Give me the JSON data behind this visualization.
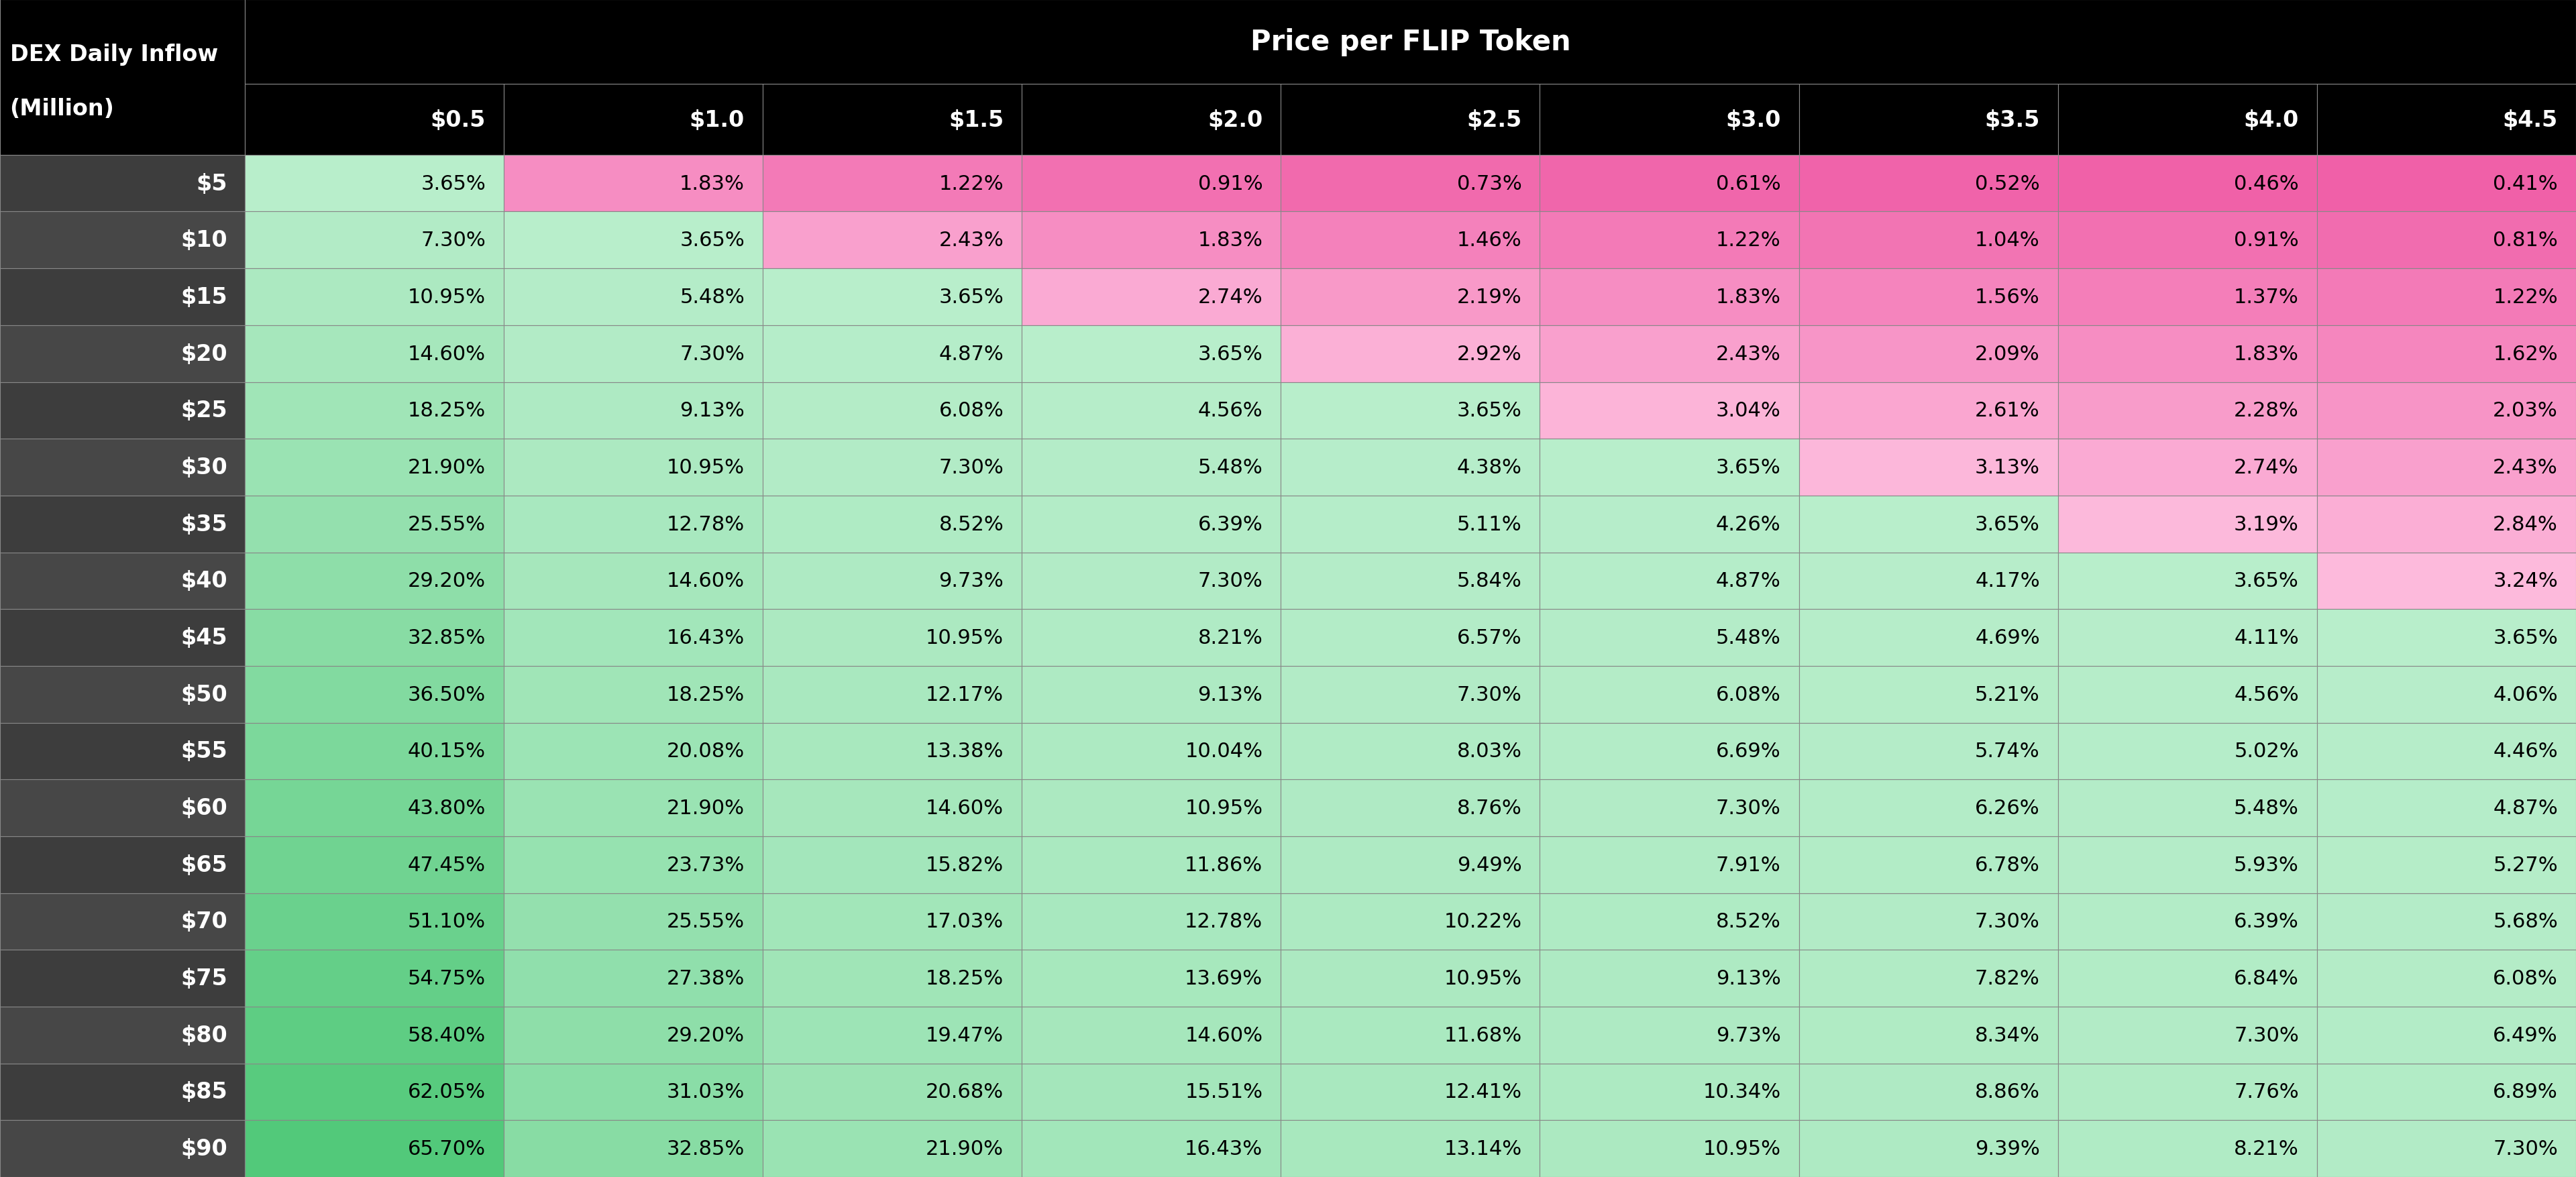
{
  "title": "Price per FLIP Token",
  "row_label_header_line1": "DEX Daily Inflow",
  "row_label_header_line2": "(Million)",
  "col_headers": [
    "$0.5",
    "$1.0",
    "$1.5",
    "$2.0",
    "$2.5",
    "$3.0",
    "$3.5",
    "$4.0",
    "$4.5"
  ],
  "row_headers": [
    "$5",
    "$10",
    "$15",
    "$20",
    "$25",
    "$30",
    "$35",
    "$40",
    "$45",
    "$50",
    "$55",
    "$60",
    "$65",
    "$70",
    "$75",
    "$80",
    "$85",
    "$90"
  ],
  "values": [
    [
      3.65,
      1.83,
      1.22,
      0.91,
      0.73,
      0.61,
      0.52,
      0.46,
      0.41
    ],
    [
      7.3,
      3.65,
      2.43,
      1.83,
      1.46,
      1.22,
      1.04,
      0.91,
      0.81
    ],
    [
      10.95,
      5.48,
      3.65,
      2.74,
      2.19,
      1.83,
      1.56,
      1.37,
      1.22
    ],
    [
      14.6,
      7.3,
      4.87,
      3.65,
      2.92,
      2.43,
      2.09,
      1.83,
      1.62
    ],
    [
      18.25,
      9.13,
      6.08,
      4.56,
      3.65,
      3.04,
      2.61,
      2.28,
      2.03
    ],
    [
      21.9,
      10.95,
      7.3,
      5.48,
      4.38,
      3.65,
      3.13,
      2.74,
      2.43
    ],
    [
      25.55,
      12.78,
      8.52,
      6.39,
      5.11,
      4.26,
      3.65,
      3.19,
      2.84
    ],
    [
      29.2,
      14.6,
      9.73,
      7.3,
      5.84,
      4.87,
      4.17,
      3.65,
      3.24
    ],
    [
      32.85,
      16.43,
      10.95,
      8.21,
      6.57,
      5.48,
      4.69,
      4.11,
      3.65
    ],
    [
      36.5,
      18.25,
      12.17,
      9.13,
      7.3,
      6.08,
      5.21,
      4.56,
      4.06
    ],
    [
      40.15,
      20.08,
      13.38,
      10.04,
      8.03,
      6.69,
      5.74,
      5.02,
      4.46
    ],
    [
      43.8,
      21.9,
      14.6,
      10.95,
      8.76,
      7.3,
      6.26,
      5.48,
      4.87
    ],
    [
      47.45,
      23.73,
      15.82,
      11.86,
      9.49,
      7.91,
      6.78,
      5.93,
      5.27
    ],
    [
      51.1,
      25.55,
      17.03,
      12.78,
      10.22,
      8.52,
      7.3,
      6.39,
      5.68
    ],
    [
      54.75,
      27.38,
      18.25,
      13.69,
      10.95,
      9.13,
      7.82,
      6.84,
      6.08
    ],
    [
      58.4,
      29.2,
      19.47,
      14.6,
      11.68,
      9.73,
      8.34,
      7.3,
      6.49
    ],
    [
      62.05,
      31.03,
      20.68,
      15.51,
      12.41,
      10.34,
      8.86,
      7.76,
      6.89
    ],
    [
      65.7,
      32.85,
      21.9,
      16.43,
      13.14,
      10.95,
      9.39,
      8.21,
      7.3
    ]
  ],
  "text_values": [
    [
      "3.65%",
      "1.83%",
      "1.22%",
      "0.91%",
      "0.73%",
      "0.61%",
      "0.52%",
      "0.46%",
      "0.41%"
    ],
    [
      "7.30%",
      "3.65%",
      "2.43%",
      "1.83%",
      "1.46%",
      "1.22%",
      "1.04%",
      "0.91%",
      "0.81%"
    ],
    [
      "10.95%",
      "5.48%",
      "3.65%",
      "2.74%",
      "2.19%",
      "1.83%",
      "1.56%",
      "1.37%",
      "1.22%"
    ],
    [
      "14.60%",
      "7.30%",
      "4.87%",
      "3.65%",
      "2.92%",
      "2.43%",
      "2.09%",
      "1.83%",
      "1.62%"
    ],
    [
      "18.25%",
      "9.13%",
      "6.08%",
      "4.56%",
      "3.65%",
      "3.04%",
      "2.61%",
      "2.28%",
      "2.03%"
    ],
    [
      "21.90%",
      "10.95%",
      "7.30%",
      "5.48%",
      "4.38%",
      "3.65%",
      "3.13%",
      "2.74%",
      "2.43%"
    ],
    [
      "25.55%",
      "12.78%",
      "8.52%",
      "6.39%",
      "5.11%",
      "4.26%",
      "3.65%",
      "3.19%",
      "2.84%"
    ],
    [
      "29.20%",
      "14.60%",
      "9.73%",
      "7.30%",
      "5.84%",
      "4.87%",
      "4.17%",
      "3.65%",
      "3.24%"
    ],
    [
      "32.85%",
      "16.43%",
      "10.95%",
      "8.21%",
      "6.57%",
      "5.48%",
      "4.69%",
      "4.11%",
      "3.65%"
    ],
    [
      "36.50%",
      "18.25%",
      "12.17%",
      "9.13%",
      "7.30%",
      "6.08%",
      "5.21%",
      "4.56%",
      "4.06%"
    ],
    [
      "40.15%",
      "20.08%",
      "13.38%",
      "10.04%",
      "8.03%",
      "6.69%",
      "5.74%",
      "5.02%",
      "4.46%"
    ],
    [
      "43.80%",
      "21.90%",
      "14.60%",
      "10.95%",
      "8.76%",
      "7.30%",
      "6.26%",
      "5.48%",
      "4.87%"
    ],
    [
      "47.45%",
      "23.73%",
      "15.82%",
      "11.86%",
      "9.49%",
      "7.91%",
      "6.78%",
      "5.93%",
      "5.27%"
    ],
    [
      "51.10%",
      "25.55%",
      "17.03%",
      "12.78%",
      "10.22%",
      "8.52%",
      "7.30%",
      "6.39%",
      "5.68%"
    ],
    [
      "54.75%",
      "27.38%",
      "18.25%",
      "13.69%",
      "10.95%",
      "9.13%",
      "7.82%",
      "6.84%",
      "6.08%"
    ],
    [
      "58.40%",
      "29.20%",
      "19.47%",
      "14.60%",
      "11.68%",
      "9.73%",
      "8.34%",
      "7.30%",
      "6.49%"
    ],
    [
      "62.05%",
      "31.03%",
      "20.68%",
      "15.51%",
      "12.41%",
      "10.34%",
      "8.86%",
      "7.76%",
      "6.89%"
    ],
    [
      "65.70%",
      "32.85%",
      "21.90%",
      "16.43%",
      "13.14%",
      "10.95%",
      "9.39%",
      "8.21%",
      "7.30%"
    ]
  ],
  "background_color": "#000000",
  "header_bg_color": "#000000",
  "header_text_color": "#ffffff",
  "row_header_text_color": "#ffffff",
  "cell_text_color": "#000000",
  "grid_color": "#888888",
  "strong_green": "#52c97a",
  "light_green": "#b8eecb",
  "strong_pink": "#f060a8",
  "light_pink": "#ffc8e4",
  "diagonal_green": "#52c97a",
  "title_fontsize": 30,
  "header_fontsize": 24,
  "cell_fontsize": 22,
  "row_header_fontsize": 24
}
